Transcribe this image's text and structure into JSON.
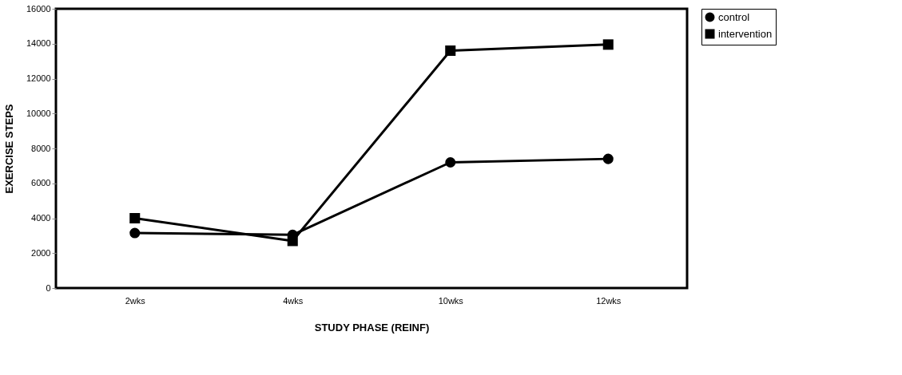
{
  "chart_data": {
    "type": "line",
    "xlabel": "STUDY PHASE (REINF)",
    "ylabel": "EXERCISE STEPS",
    "categories": [
      "2wks",
      "4wks",
      "10wks",
      "12wks"
    ],
    "series": [
      {
        "name": "control",
        "color": "#000000",
        "marker": "circle",
        "values": [
          3150,
          3050,
          7200,
          7400
        ]
      },
      {
        "name": "intervention",
        "color": "#000000",
        "marker": "square",
        "values": [
          4000,
          2700,
          13600,
          13950
        ]
      }
    ],
    "ylim": [
      0,
      16000
    ],
    "yticks": [
      0,
      2000,
      4000,
      6000,
      8000,
      10000,
      12000,
      14000,
      16000
    ],
    "grid": false,
    "legend": "right",
    "line_style": "solid"
  }
}
